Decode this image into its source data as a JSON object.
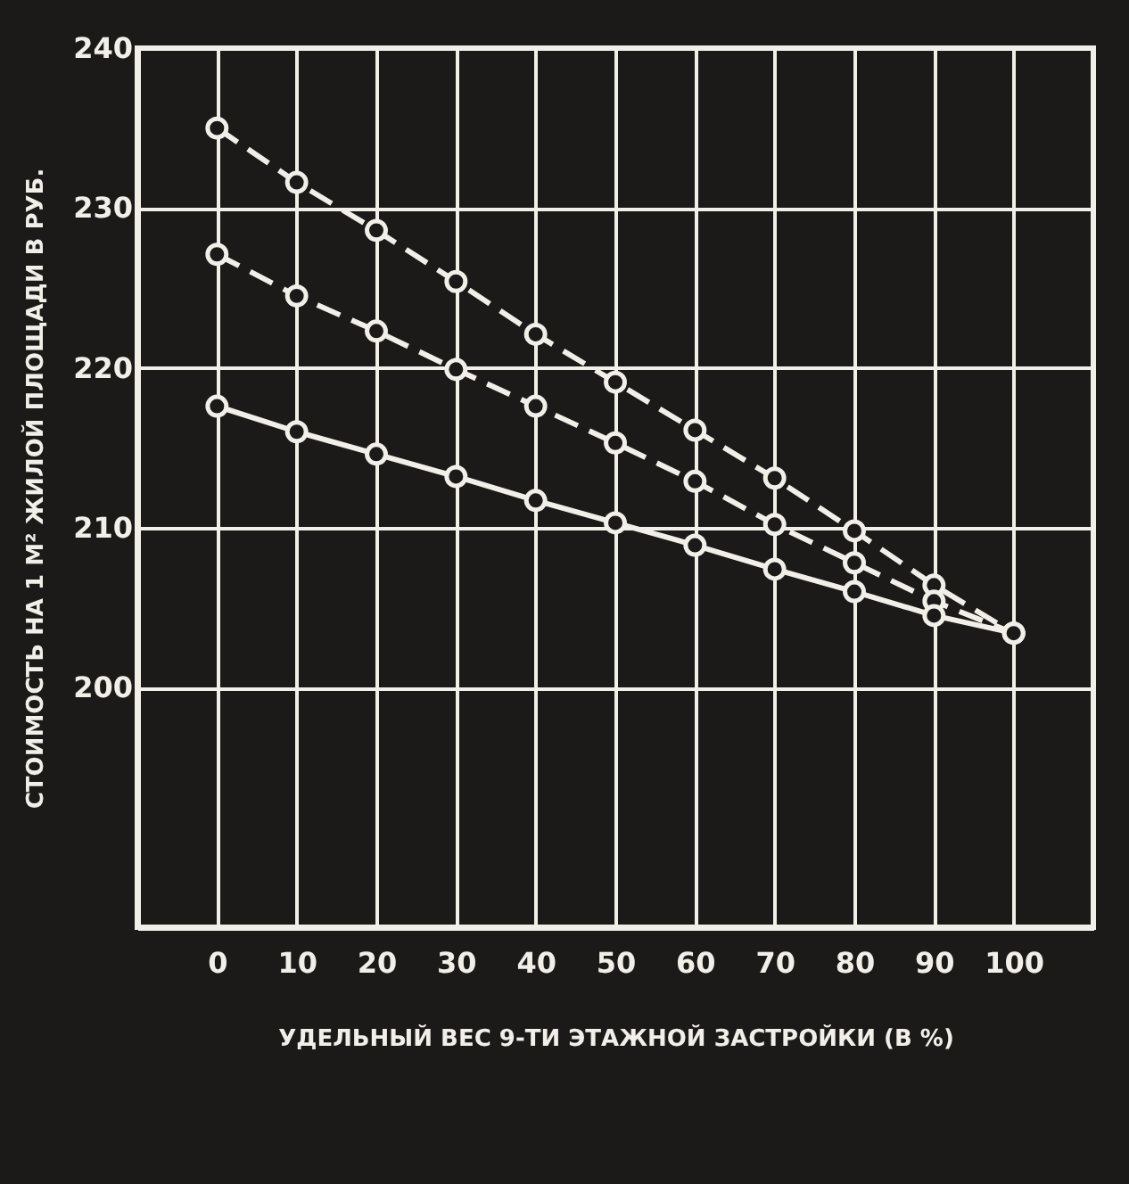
{
  "chart_data": {
    "type": "line",
    "xlabel": "УДЕЛЬНЫЙ ВЕС  9-ТИ ЭТАЖНОЙ ЗАСТРОЙКИ  (В %)",
    "ylabel": "СТОИМОСТЬ НА 1  М² ЖИЛОЙ ПЛОЩАДИ В РУБ.",
    "x": [
      0,
      10,
      20,
      30,
      40,
      50,
      60,
      70,
      80,
      90,
      100
    ],
    "series": [
      {
        "color": "#f2efe8",
        "line_style": "dashed",
        "values": [
          235.0,
          231.6,
          228.6,
          225.4,
          222.1,
          219.1,
          216.1,
          213.1,
          209.8,
          206.4,
          203.4
        ]
      },
      {
        "color": "#f2efe8",
        "line_style": "dashed",
        "values": [
          227.1,
          224.5,
          222.3,
          219.9,
          217.6,
          215.3,
          212.9,
          210.2,
          207.8,
          205.4,
          203.4
        ]
      },
      {
        "color": "#f2efe8",
        "line_style": "solid",
        "values": [
          217.6,
          216.0,
          214.6,
          213.2,
          211.7,
          210.3,
          208.9,
          207.4,
          206.0,
          204.5,
          203.4
        ]
      }
    ],
    "xlim": [
      -10,
      110
    ],
    "xticks": [
      0,
      10,
      20,
      30,
      40,
      50,
      60,
      70,
      80,
      90,
      100
    ],
    "ylim": [
      185,
      240
    ],
    "yticks": [
      200,
      210,
      220,
      230,
      240
    ],
    "grid": true,
    "marker": "circle"
  }
}
